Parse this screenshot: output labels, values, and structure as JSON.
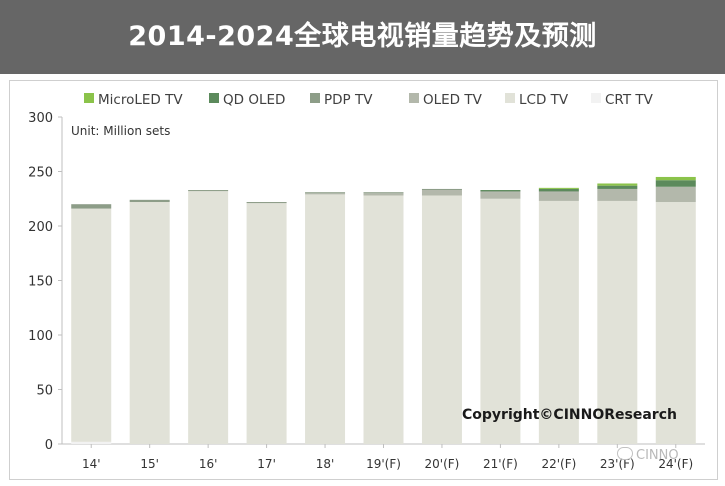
{
  "title": "2014-2024全球电视销量趋势及预测",
  "watermark": "CINNO",
  "chart_data": {
    "type": "bar",
    "stacked": true,
    "categories": [
      "14'",
      "15'",
      "16'",
      "17'",
      "18'",
      "19'(F)",
      "20'(F)",
      "21'(F)",
      "22'(F)",
      "23'(F)",
      "24'(F)"
    ],
    "series": [
      {
        "name": "CRT TV",
        "color": "#f2f2f2",
        "values": [
          2,
          0,
          0,
          0,
          0,
          0,
          0,
          0,
          0,
          0,
          0
        ]
      },
      {
        "name": "LCD TV",
        "color": "#e1e2d8",
        "values": [
          214,
          222,
          232,
          221,
          229,
          228,
          228,
          225,
          223,
          223,
          222
        ]
      },
      {
        "name": "OLED TV",
        "color": "#b3b8ab",
        "values": [
          0,
          0,
          0,
          0,
          1,
          2,
          5,
          6,
          8,
          11,
          14
        ]
      },
      {
        "name": "PDP TV",
        "color": "#8d9d88",
        "values": [
          4,
          2,
          1,
          1,
          1,
          1,
          1,
          1,
          1,
          0,
          0
        ]
      },
      {
        "name": "QD OLED",
        "color": "#5c8a5c",
        "values": [
          0,
          0,
          0,
          0,
          0,
          0,
          0,
          1,
          2,
          3,
          6
        ]
      },
      {
        "name": "MicroLED TV",
        "color": "#8bc34a",
        "values": [
          0,
          0,
          0,
          0,
          0,
          0,
          0,
          0,
          1,
          2,
          3
        ]
      }
    ],
    "ylim": [
      0,
      300
    ],
    "yticks": [
      0,
      50,
      100,
      150,
      200,
      250,
      300
    ],
    "unit_note": "Unit:  Million sets",
    "copyright": "Copyright©CINNOResearch",
    "legend_position": "top-left",
    "legend_order": [
      "MicroLED TV",
      "QD OLED",
      "PDP TV",
      "OLED TV",
      "LCD TV",
      "CRT TV"
    ],
    "grid": false
  }
}
